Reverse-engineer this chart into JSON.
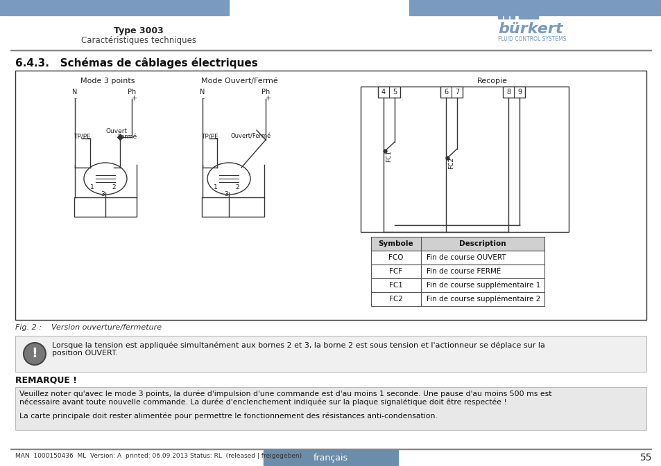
{
  "header_bar_color": "#7a9bbf",
  "header_text_left_bold": "Type 3003",
  "header_text_left_sub": "Caractéristiques techniques",
  "burkert_color": "#7a9bbf",
  "section_title": "6.4.3.   Schémas de câblages électriques",
  "fig_caption": "Fig. 2 :    Version ouverture/fermeture",
  "warning_text": "Lorsque la tension est appliquée simultanément aux bornes 2 et 3, la borne 2 est sous tension et l'actionneur se déplace sur la\nposition OUVERT.",
  "remarque_title": "REMARQUE !",
  "remarque_text1": "Veuillez noter qu'avec le mode 3 points, la durée d'impulsion d'une commande est d'au moins 1 seconde. Une pause d'au moins 500 ms est\nnécessaire avant toute nouvelle commande. La durée d'enclenchement indiquée sur la plaque signalétique doit être respectée !",
  "remarque_text2": "La carte principale doit rester alimentée pour permettre le fonctionnement des résistances anti-condensation.",
  "footer_left": "MAN  1000150436  ML  Version: A  printed: 06.09.2013 Status: RL  (released | freigegeben)",
  "footer_center": "français",
  "footer_page": "55",
  "footer_bar_color": "#6b8caa",
  "table_header_color": "#d0d0d0",
  "table_rows": [
    [
      "FCO",
      "Fin de course OUVERT"
    ],
    [
      "FCF",
      "Fin de course FERMÉ"
    ],
    [
      "FC1",
      "Fin de course supplémentaire 1"
    ],
    [
      "FC2",
      "Fin de course supplémentaire 2"
    ]
  ],
  "diagram_bg": "#f5f5f5",
  "diagram_border": "#333333"
}
